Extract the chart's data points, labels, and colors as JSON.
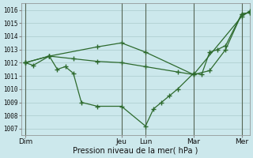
{
  "bg_color": "#cce8ec",
  "grid_color": "#b8d8dc",
  "line_color": "#2d6a2d",
  "ylim": [
    1006.5,
    1016.5
  ],
  "yticks": [
    1007,
    1008,
    1009,
    1010,
    1011,
    1012,
    1013,
    1014,
    1015,
    1016
  ],
  "xlabel": "Pression niveau de la mer( hPa )",
  "x_day_labels": [
    "Dim",
    "Jeu",
    "Lun",
    "Mar",
    "Mer"
  ],
  "x_day_positions": [
    0,
    12,
    15,
    21,
    27
  ],
  "xlim": [
    -0.5,
    28.0
  ],
  "line1_x": [
    0,
    1,
    3,
    4,
    5,
    6,
    7,
    9,
    12,
    15,
    16,
    17,
    18,
    19,
    21,
    22,
    23,
    24,
    25,
    27,
    28
  ],
  "line1_y": [
    1012.0,
    1011.8,
    1012.5,
    1011.5,
    1011.7,
    1011.2,
    1009.0,
    1008.7,
    1008.7,
    1007.2,
    1008.5,
    1009.0,
    1009.5,
    1010.0,
    1011.2,
    1011.1,
    1012.8,
    1013.0,
    1013.3,
    1015.7,
    1015.8
  ],
  "line2_x": [
    0,
    3,
    6,
    9,
    12,
    15,
    19,
    21,
    23,
    25,
    27,
    28
  ],
  "line2_y": [
    1012.0,
    1012.5,
    1012.3,
    1012.1,
    1012.0,
    1011.7,
    1011.3,
    1011.1,
    1011.4,
    1013.0,
    1015.7,
    1015.8
  ],
  "line3_x": [
    0,
    3,
    9,
    12,
    15,
    21,
    27,
    28
  ],
  "line3_y": [
    1012.0,
    1012.5,
    1013.2,
    1013.5,
    1012.8,
    1011.1,
    1015.5,
    1015.9
  ],
  "vline_positions": [
    0,
    12,
    15,
    21,
    27
  ],
  "vline_color": "#556655"
}
